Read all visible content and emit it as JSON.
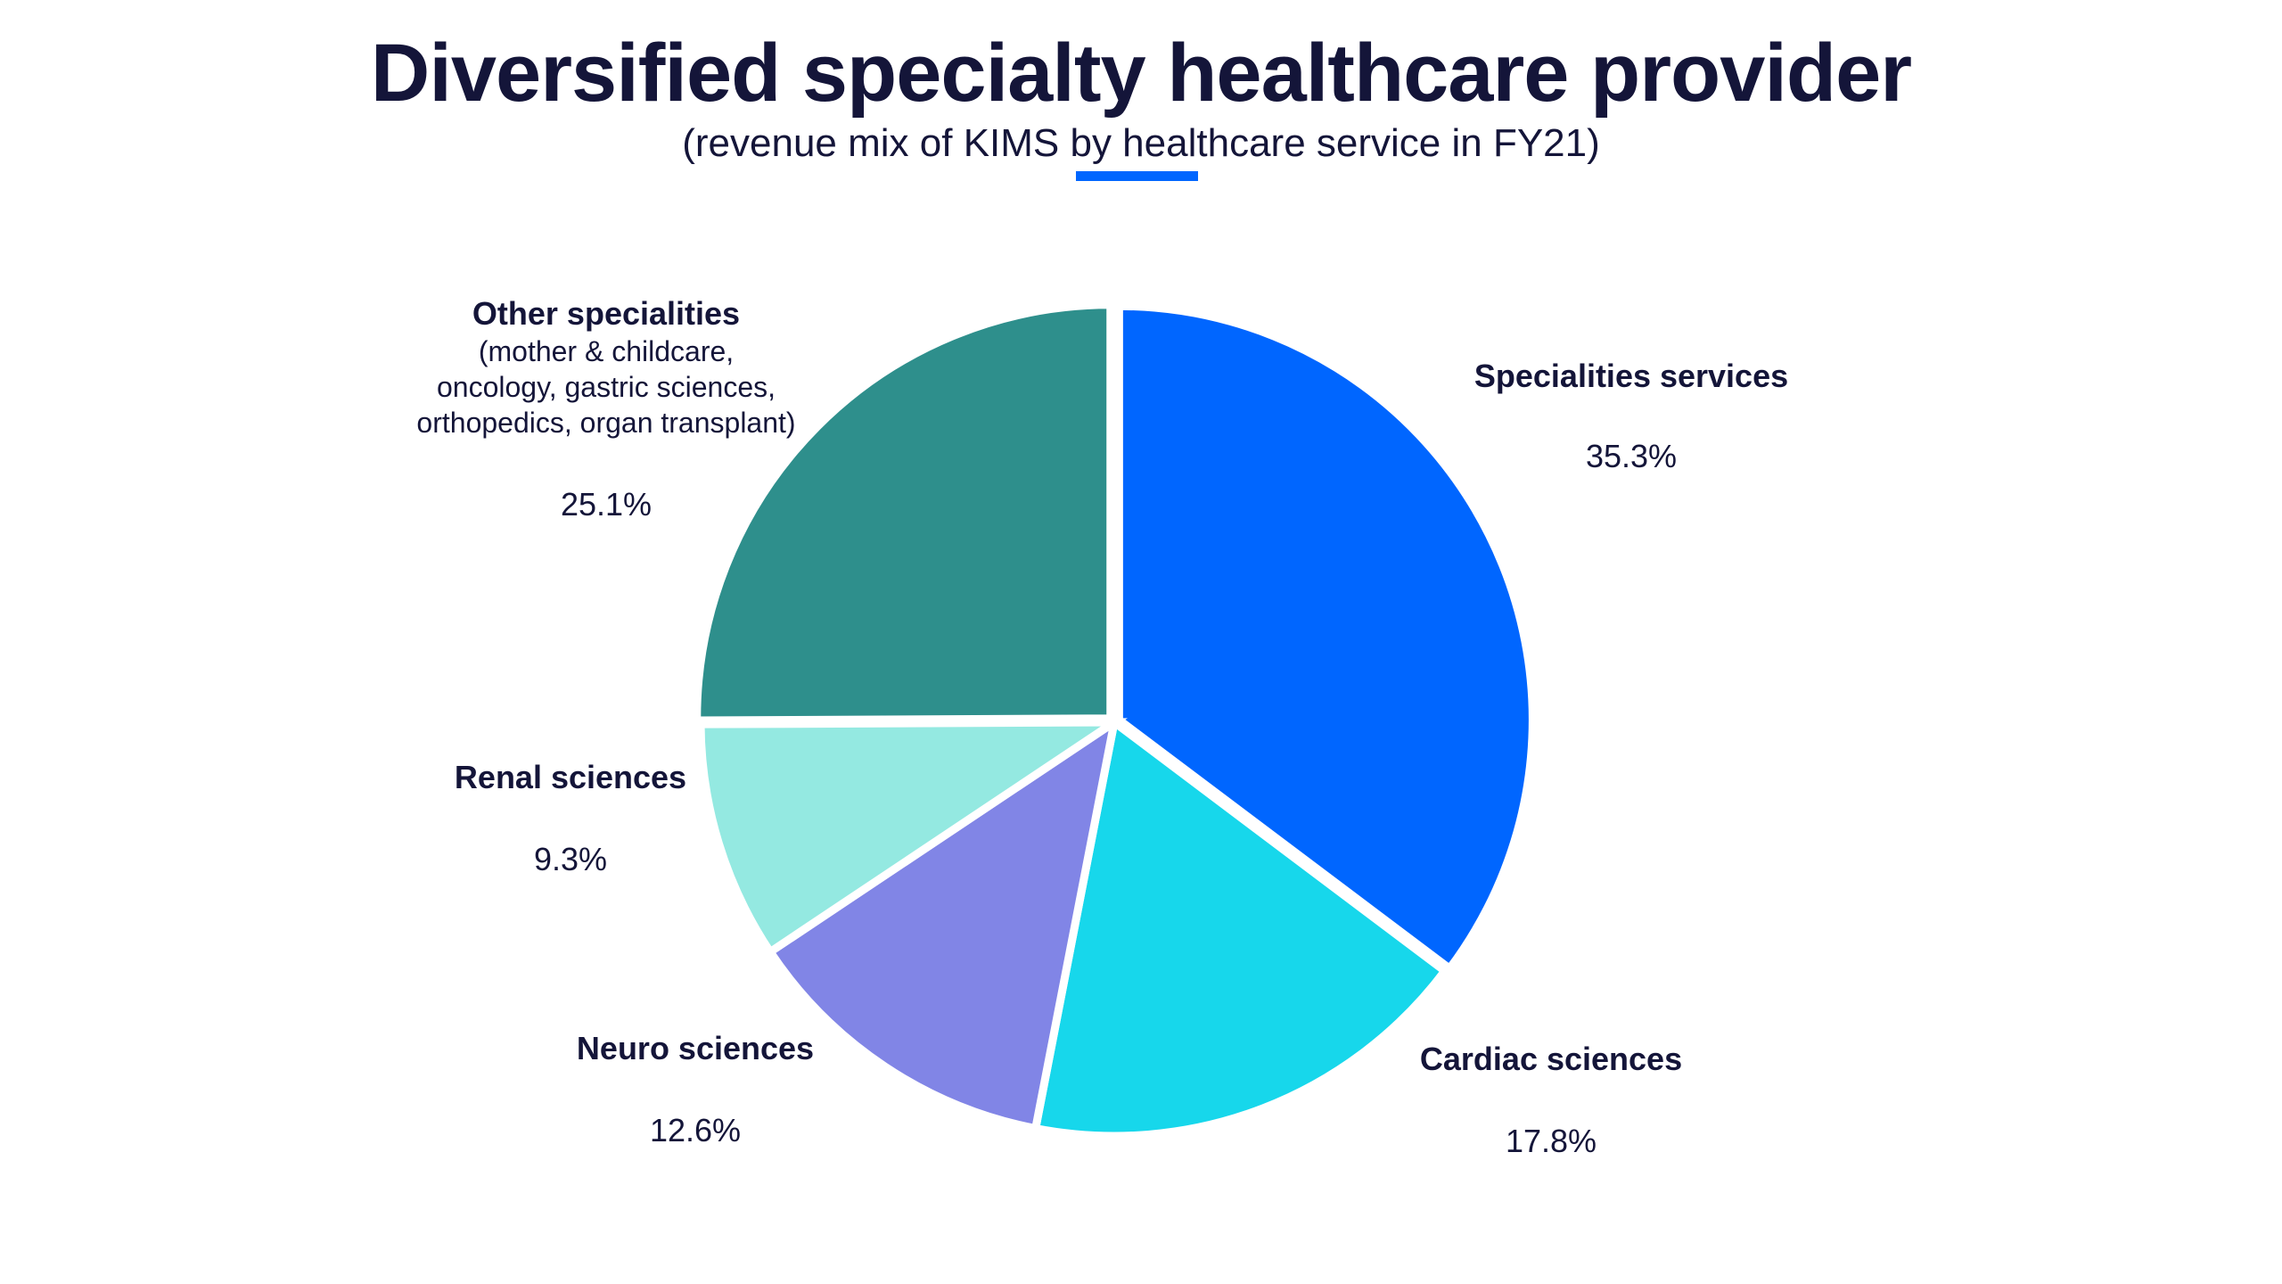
{
  "header": {
    "title": "Diversified specialty healthcare provider",
    "subtitle": "(revenue mix of KIMS by healthcare service in FY21)",
    "accent_color": "#0066FF"
  },
  "chart_data": {
    "type": "pie",
    "title": "Diversified specialty healthcare provider",
    "subtitle": "(revenue mix of KIMS by healthcare service in FY21)",
    "unit": "%",
    "slices": [
      {
        "name": "Specialities services",
        "detail": "",
        "value": 35.3,
        "label": "35.3%",
        "color": "#0066FF",
        "exploded": true
      },
      {
        "name": "Cardiac sciences",
        "detail": "",
        "value": 17.8,
        "label": "17.8%",
        "color": "#17D7EB",
        "exploded": false
      },
      {
        "name": "Neuro sciences",
        "detail": "",
        "value": 12.6,
        "label": "12.6%",
        "color": "#8185E6",
        "exploded": false
      },
      {
        "name": "Renal sciences",
        "detail": "",
        "value": 9.3,
        "label": "9.3%",
        "color": "#94E9E1",
        "exploded": false
      },
      {
        "name": "Other specialities",
        "detail_lines": [
          "(mother & childcare,",
          "oncology, gastric sciences,",
          "orthopedics, organ transplant)"
        ],
        "value": 25.1,
        "label": "25.1%",
        "color": "#2E8F8C",
        "exploded": true
      }
    ],
    "start_angle": "12 o'clock",
    "direction": "clockwise",
    "legend": "none (direct labels)"
  }
}
